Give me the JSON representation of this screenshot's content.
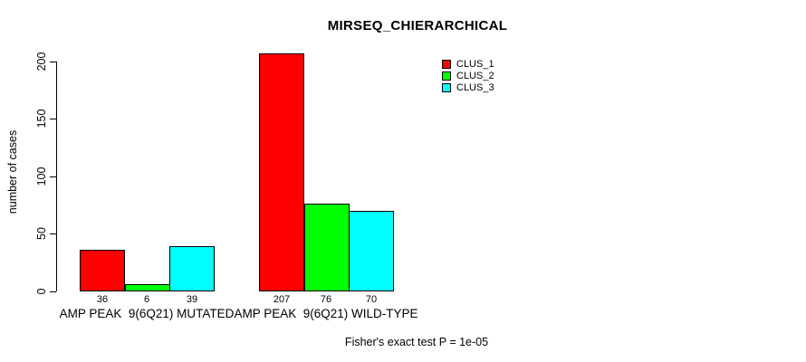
{
  "chart_data": {
    "type": "bar",
    "title": "MIRSEQ_CHIERARCHICAL",
    "ylabel": "number of cases",
    "xlabel": "",
    "categories": [
      "AMP PEAK  9(6Q21) MUTATED",
      "AMP PEAK  9(6Q21) WILD-TYPE"
    ],
    "series": [
      {
        "name": "CLUS_1",
        "color": "#ff0000",
        "values": [
          36,
          207
        ]
      },
      {
        "name": "CLUS_2",
        "color": "#00ff00",
        "values": [
          6,
          76
        ]
      },
      {
        "name": "CLUS_3",
        "color": "#00ffff",
        "values": [
          39,
          70
        ]
      }
    ],
    "bar_value_labels": [
      [
        "36",
        "6",
        "39"
      ],
      [
        "207",
        "76",
        "70"
      ]
    ],
    "yticks": [
      0,
      50,
      100,
      150,
      200
    ],
    "ylim": [
      0,
      207
    ],
    "grid": false,
    "legend_position": "top-right",
    "annotation": "Fisher's exact test P = 1e-05"
  }
}
